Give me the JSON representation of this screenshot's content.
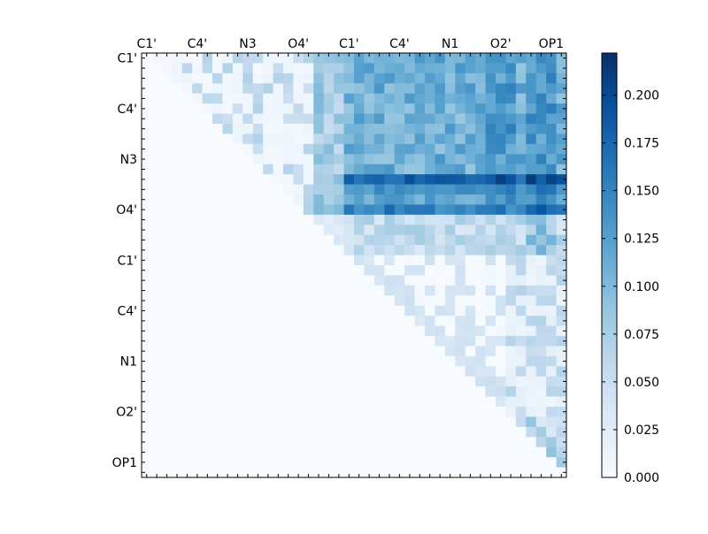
{
  "chart_data": {
    "type": "heatmap",
    "title": "",
    "xlabel": "",
    "ylabel": "",
    "size": 42,
    "tick_labels": [
      "C1'",
      "C4'",
      "N3",
      "O4'",
      "C1'",
      "C4'",
      "N1",
      "O2'",
      "OP1"
    ],
    "tick_positions": [
      0.5,
      5.5,
      10.5,
      15.5,
      20.5,
      25.5,
      30.5,
      35.5,
      40.5
    ],
    "colorbar": {
      "min": 0.0,
      "max": 0.222,
      "ticks": [
        0.0,
        0.025,
        0.05,
        0.075,
        0.1,
        0.125,
        0.15,
        0.175,
        0.2
      ],
      "tick_labels": [
        "0.000",
        "0.025",
        "0.050",
        "0.075",
        "0.100",
        "0.125",
        "0.150",
        "0.175",
        "0.200"
      ],
      "colormap": "Blues"
    },
    "values": "upper-triangular matrix; bands listed in script"
  }
}
